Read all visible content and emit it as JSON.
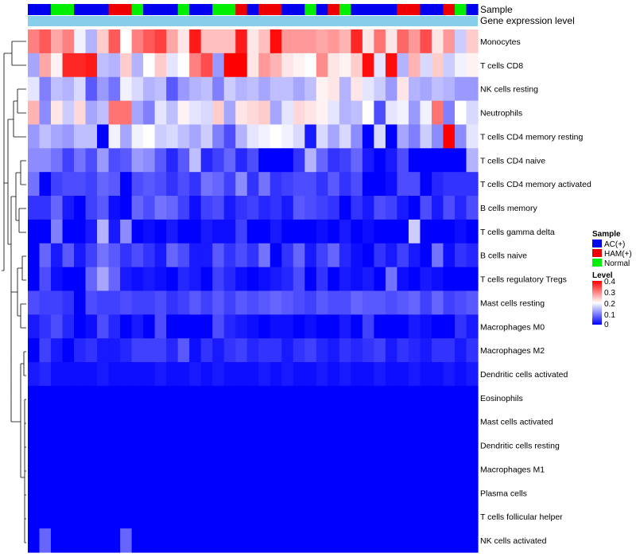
{
  "chart_data": {
    "type": "heatmap",
    "rows": [
      "Monocytes",
      "T cells CD8",
      "NK cells resting",
      "Neutrophils",
      "T cells CD4 memory resting",
      "T cells CD4 naive",
      "T cells CD4 memory activated",
      "B cells memory",
      "T cells gamma delta",
      "B cells naive",
      "T cells regulatory  Tregs",
      "Mast cells resting",
      "Macrophages M0",
      "Macrophages M2",
      "Dendritic cells activated",
      "Eosinophils",
      "Mast cells activated",
      "Dendritic cells resting",
      "Macrophages M1",
      "Plasma cells",
      "T cells follicular helper",
      "NK cells activated"
    ],
    "annotations": [
      "Sample",
      "Gene expression level"
    ],
    "sample_groups": [
      "AC(+)",
      "AC(+)",
      "Normal",
      "Normal",
      "AC(+)",
      "AC(+)",
      "AC(+)",
      "HAM(+)",
      "HAM(+)",
      "Normal",
      "AC(+)",
      "AC(+)",
      "AC(+)",
      "Normal",
      "AC(+)",
      "AC(+)",
      "Normal",
      "Normal",
      "HAM(+)",
      "AC(+)",
      "HAM(+)",
      "HAM(+)",
      "AC(+)",
      "AC(+)",
      "Normal",
      "AC(+)",
      "HAM(+)",
      "Normal",
      "AC(+)",
      "AC(+)",
      "AC(+)",
      "AC(+)",
      "HAM(+)",
      "HAM(+)",
      "AC(+)",
      "AC(+)",
      "HAM(+)",
      "Normal",
      "AC(+)"
    ],
    "values": [
      [
        0.3,
        0.33,
        0.27,
        0.3,
        0.19,
        0.14,
        0.24,
        0.33,
        0.2,
        0.3,
        0.33,
        0.35,
        0.27,
        0.22,
        0.38,
        0.25,
        0.25,
        0.25,
        0.38,
        0.22,
        0.25,
        0.39,
        0.28,
        0.28,
        0.28,
        0.27,
        0.28,
        0.26,
        0.37,
        0.22,
        0.31,
        0.22,
        0.32,
        0.28,
        0.34,
        0.22,
        0.28,
        0.16,
        0.24
      ],
      [
        0.13,
        0.27,
        0.21,
        0.37,
        0.37,
        0.38,
        0.15,
        0.14,
        0.24,
        0.14,
        0.2,
        0.24,
        0.18,
        0.2,
        0.3,
        0.34,
        0.12,
        0.4,
        0.4,
        0.22,
        0.28,
        0.26,
        0.22,
        0.21,
        0.2,
        0.29,
        0.22,
        0.21,
        0.24,
        0.39,
        0.18,
        0.39,
        0.14,
        0.26,
        0.17,
        0.24,
        0.16,
        0.19,
        0.21
      ],
      [
        0.18,
        0.1,
        0.15,
        0.14,
        0.17,
        0.07,
        0.12,
        0.09,
        0.19,
        0.17,
        0.14,
        0.15,
        0.07,
        0.12,
        0.14,
        0.15,
        0.1,
        0.16,
        0.14,
        0.15,
        0.13,
        0.15,
        0.15,
        0.13,
        0.15,
        0.21,
        0.22,
        0.14,
        0.22,
        0.18,
        0.16,
        0.12,
        0.22,
        0.14,
        0.13,
        0.15,
        0.14,
        0.12,
        0.12
      ],
      [
        0.26,
        0.11,
        0.22,
        0.16,
        0.23,
        0.13,
        0.15,
        0.31,
        0.31,
        0.13,
        0.1,
        0.18,
        0.15,
        0.21,
        0.18,
        0.17,
        0.24,
        0.13,
        0.22,
        0.23,
        0.24,
        0.13,
        0.18,
        0.23,
        0.22,
        0.21,
        0.18,
        0.14,
        0.15,
        0.2,
        0.06,
        0.18,
        0.19,
        0.12,
        0.19,
        0.31,
        0.1,
        0.2,
        0.17
      ],
      [
        0.12,
        0.15,
        0.13,
        0.12,
        0.15,
        0.15,
        0.0,
        0.19,
        0.13,
        0.19,
        0.2,
        0.16,
        0.17,
        0.15,
        0.13,
        0.16,
        0.1,
        0.06,
        0.14,
        0.18,
        0.19,
        0.2,
        0.19,
        0.17,
        0.02,
        0.17,
        0.13,
        0.17,
        0.11,
        0.0,
        0.17,
        0.0,
        0.13,
        0.1,
        0.16,
        0.11,
        0.4,
        0.11,
        0.18
      ],
      [
        0.11,
        0.11,
        0.09,
        0.05,
        0.09,
        0.06,
        0.12,
        0.06,
        0.07,
        0.12,
        0.11,
        0.07,
        0.03,
        0.07,
        0.15,
        0.03,
        0.05,
        0.08,
        0.03,
        0.06,
        0.0,
        0.0,
        0.0,
        0.04,
        0.14,
        0.08,
        0.04,
        0.05,
        0.08,
        0.02,
        0.0,
        0.02,
        0.06,
        0.0,
        0.0,
        0.0,
        0.0,
        0.0,
        0.14
      ],
      [
        0.09,
        0.0,
        0.05,
        0.06,
        0.06,
        0.05,
        0.08,
        0.07,
        0.0,
        0.06,
        0.07,
        0.06,
        0.04,
        0.06,
        0.04,
        0.09,
        0.08,
        0.05,
        0.11,
        0.04,
        0.09,
        0.04,
        0.05,
        0.06,
        0.06,
        0.04,
        0.07,
        0.04,
        0.06,
        0.0,
        0.0,
        0.01,
        0.06,
        0.06,
        0.0,
        0.03,
        0.04,
        0.04,
        0.04
      ],
      [
        0.04,
        0.04,
        0.08,
        0.02,
        0.0,
        0.05,
        0.07,
        0.01,
        0.0,
        0.08,
        0.06,
        0.09,
        0.08,
        0.05,
        0.01,
        0.05,
        0.06,
        0.02,
        0.04,
        0.05,
        0.03,
        0.04,
        0.02,
        0.07,
        0.06,
        0.05,
        0.04,
        0.0,
        0.04,
        0.02,
        0.06,
        0.05,
        0.02,
        0.0,
        0.06,
        0.02,
        0.06,
        0.03,
        0.06
      ],
      [
        0.0,
        0.0,
        0.1,
        0.0,
        0.0,
        0.02,
        0.14,
        0.02,
        0.11,
        0.0,
        0.01,
        0.0,
        0.02,
        0.0,
        0.0,
        0.02,
        0.01,
        0.01,
        0.05,
        0.0,
        0.0,
        0.02,
        0.0,
        0.0,
        0.0,
        0.01,
        0.0,
        0.02,
        0.0,
        0.01,
        0.0,
        0.0,
        0.0,
        0.16,
        0.0,
        0.0,
        0.0,
        0.01,
        0.0
      ],
      [
        0.0,
        0.08,
        0.02,
        0.07,
        0.02,
        0.05,
        0.09,
        0.07,
        0.04,
        0.06,
        0.04,
        0.02,
        0.08,
        0.06,
        0.02,
        0.02,
        0.07,
        0.04,
        0.06,
        0.04,
        0.09,
        0.0,
        0.04,
        0.08,
        0.02,
        0.05,
        0.08,
        0.03,
        0.01,
        0.0,
        0.04,
        0.02,
        0.05,
        0.02,
        0.0,
        0.09,
        0.01,
        0.04,
        0.03
      ],
      [
        0.0,
        0.06,
        0.01,
        0.0,
        0.0,
        0.08,
        0.13,
        0.08,
        0.02,
        0.01,
        0.02,
        0.01,
        0.0,
        0.03,
        0.02,
        0.0,
        0.05,
        0.03,
        0.01,
        0.0,
        0.01,
        0.02,
        0.03,
        0.06,
        0.0,
        0.04,
        0.0,
        0.02,
        0.01,
        0.02,
        0.0,
        0.09,
        0.01,
        0.0,
        0.02,
        0.01,
        0.0,
        0.0,
        0.0
      ],
      [
        0.06,
        0.05,
        0.05,
        0.04,
        0.0,
        0.06,
        0.05,
        0.05,
        0.06,
        0.05,
        0.05,
        0.06,
        0.04,
        0.05,
        0.07,
        0.05,
        0.07,
        0.05,
        0.07,
        0.06,
        0.07,
        0.08,
        0.07,
        0.06,
        0.05,
        0.07,
        0.06,
        0.06,
        0.08,
        0.07,
        0.07,
        0.06,
        0.07,
        0.08,
        0.05,
        0.08,
        0.05,
        0.06,
        0.07
      ],
      [
        0.02,
        0.04,
        0.06,
        0.03,
        0.0,
        0.01,
        0.06,
        0.03,
        0.0,
        0.02,
        0.0,
        0.06,
        0.0,
        0.0,
        0.0,
        0.0,
        0.06,
        0.03,
        0.02,
        0.01,
        0.0,
        0.01,
        0.01,
        0.0,
        0.01,
        0.0,
        0.0,
        0.02,
        0.0,
        0.05,
        0.0,
        0.0,
        0.0,
        0.02,
        0.01,
        0.0,
        0.0,
        0.04,
        0.02
      ],
      [
        0.0,
        0.05,
        0.02,
        0.0,
        0.03,
        0.04,
        0.02,
        0.02,
        0.03,
        0.05,
        0.05,
        0.05,
        0.03,
        0.07,
        0.01,
        0.04,
        0.02,
        0.04,
        0.05,
        0.03,
        0.04,
        0.04,
        0.02,
        0.04,
        0.05,
        0.03,
        0.02,
        0.04,
        0.03,
        0.04,
        0.05,
        0.02,
        0.04,
        0.03,
        0.02,
        0.04,
        0.04,
        0.02,
        0.04
      ],
      [
        0.02,
        0.03,
        0.01,
        0.01,
        0.01,
        0.01,
        0.02,
        0.01,
        0.01,
        0.01,
        0.01,
        0.02,
        0.01,
        0.01,
        0.02,
        0.01,
        0.02,
        0.01,
        0.01,
        0.01,
        0.02,
        0.01,
        0.02,
        0.01,
        0.01,
        0.02,
        0.01,
        0.02,
        0.01,
        0.01,
        0.02,
        0.01,
        0.01,
        0.02,
        0.01,
        0.01,
        0.02,
        0.01,
        0.02
      ],
      [
        0,
        0,
        0,
        0,
        0,
        0,
        0,
        0,
        0,
        0,
        0,
        0,
        0,
        0,
        0,
        0,
        0,
        0,
        0,
        0,
        0,
        0,
        0,
        0,
        0,
        0,
        0,
        0,
        0,
        0,
        0,
        0,
        0,
        0,
        0,
        0,
        0,
        0,
        0
      ],
      [
        0,
        0,
        0,
        0,
        0,
        0,
        0,
        0,
        0,
        0,
        0,
        0,
        0,
        0,
        0,
        0,
        0,
        0,
        0,
        0,
        0,
        0,
        0,
        0,
        0,
        0,
        0,
        0,
        0,
        0,
        0,
        0,
        0,
        0,
        0,
        0,
        0,
        0,
        0
      ],
      [
        0,
        0,
        0,
        0,
        0,
        0,
        0,
        0,
        0,
        0,
        0,
        0,
        0,
        0,
        0,
        0,
        0,
        0,
        0,
        0,
        0,
        0,
        0,
        0,
        0,
        0,
        0,
        0,
        0,
        0,
        0,
        0,
        0,
        0,
        0,
        0,
        0,
        0,
        0
      ],
      [
        0,
        0,
        0,
        0,
        0,
        0,
        0,
        0,
        0,
        0,
        0,
        0,
        0,
        0,
        0,
        0,
        0,
        0,
        0,
        0,
        0,
        0,
        0,
        0,
        0,
        0,
        0,
        0,
        0,
        0,
        0,
        0,
        0,
        0,
        0,
        0,
        0,
        0,
        0
      ],
      [
        0,
        0,
        0,
        0,
        0,
        0,
        0,
        0,
        0,
        0,
        0,
        0,
        0,
        0,
        0,
        0,
        0,
        0,
        0,
        0,
        0,
        0,
        0,
        0,
        0,
        0,
        0,
        0,
        0,
        0,
        0,
        0,
        0,
        0,
        0,
        0,
        0,
        0,
        0
      ],
      [
        0,
        0,
        0,
        0,
        0,
        0,
        0,
        0,
        0,
        0,
        0,
        0,
        0,
        0,
        0,
        0,
        0,
        0,
        0,
        0,
        0,
        0,
        0,
        0,
        0,
        0,
        0,
        0,
        0,
        0,
        0,
        0,
        0,
        0,
        0,
        0,
        0,
        0,
        0
      ],
      [
        0.0,
        0.08,
        0.0,
        0.0,
        0.0,
        0.0,
        0.0,
        0.0,
        0.08,
        0.0,
        0.0,
        0.0,
        0.0,
        0.0,
        0.0,
        0.0,
        0.0,
        0.0,
        0.0,
        0.0,
        0.0,
        0.0,
        0.0,
        0.0,
        0.0,
        0.0,
        0.0,
        0.0,
        0.0,
        0.0,
        0.0,
        0.0,
        0.0,
        0.0,
        0.0,
        0.0,
        0.0,
        0.0,
        0.0
      ]
    ],
    "color_scale": {
      "min": 0,
      "mid": 0.2,
      "max": 0.4,
      "low": "#0000ff",
      "mid_color": "#ffffff",
      "high": "#ff0000"
    },
    "legend_sample": {
      "title": "Sample",
      "items": [
        {
          "label": "AC(+)",
          "color": "#0000ee"
        },
        {
          "label": "HAM(+)",
          "color": "#ee0000"
        },
        {
          "label": "Normal",
          "color": "#00ee00"
        }
      ]
    },
    "legend_level": {
      "title": "Level",
      "ticks": [
        "0.4",
        "0.3",
        "0.2",
        "0.1",
        "0"
      ]
    },
    "expression_color": "#87ceeb"
  }
}
